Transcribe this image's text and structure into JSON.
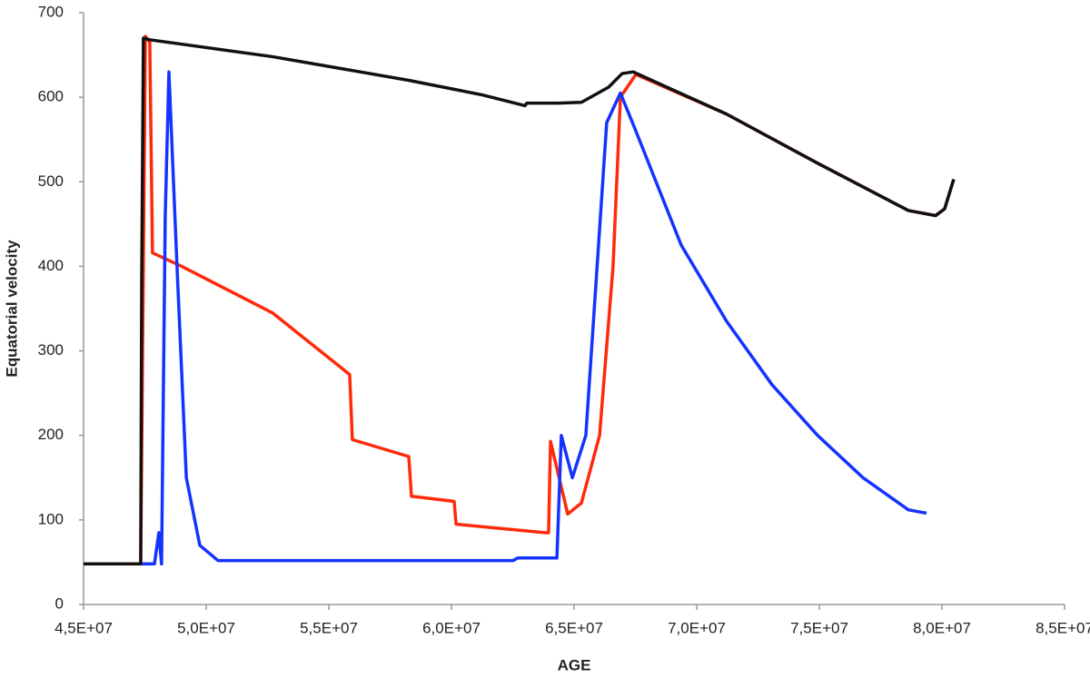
{
  "chart_data": {
    "type": "line",
    "x_label": "AGE",
    "y_label": "Equatorial velocity",
    "xlim": [
      45000000,
      85000000
    ],
    "xticks": [
      {
        "value": 45000000,
        "label": "4,5E+07"
      },
      {
        "value": 50000000,
        "label": "5,0E+07"
      },
      {
        "value": 55000000,
        "label": "5,5E+07"
      },
      {
        "value": 60000000,
        "label": "6,0E+07"
      },
      {
        "value": 65000000,
        "label": "6,5E+07"
      },
      {
        "value": 70000000,
        "label": "7,0E+07"
      },
      {
        "value": 75000000,
        "label": "7,5E+07"
      },
      {
        "value": 80000000,
        "label": "8,0E+07"
      },
      {
        "value": 85000000,
        "label": "8,5E+07"
      }
    ],
    "ylim": [
      0,
      700
    ],
    "yticks": [
      0,
      100,
      200,
      300,
      400,
      500,
      600,
      700
    ],
    "grid": false,
    "series": [
      {
        "color": "#ff2a0a",
        "x": [
          45000000,
          47330000,
          47520000,
          47700000,
          47810000,
          49000000,
          52700000,
          55850000,
          55960000,
          58260000,
          58370000,
          60110000,
          60190000,
          63810000,
          63960000,
          64040000,
          64740000,
          65300000,
          66040000,
          66590000,
          66890000,
          67520000,
          71220000,
          74930000,
          78630000,
          79740000,
          80110000,
          80480000
        ],
        "values": [
          48,
          48,
          672,
          665,
          416,
          400,
          345,
          272,
          195,
          175,
          128,
          122,
          95,
          85,
          85,
          193,
          107,
          120,
          200,
          400,
          600,
          627,
          580,
          522,
          466,
          460,
          468,
          503
        ]
      },
      {
        "color": "#1433ff",
        "x": [
          45000000,
          47890000,
          48070000,
          48180000,
          48330000,
          48480000,
          48810000,
          49190000,
          49740000,
          50480000,
          62520000,
          62700000,
          64300000,
          64480000,
          64930000,
          65480000,
          66330000,
          66890000,
          67520000,
          69370000,
          71220000,
          73070000,
          74930000,
          76780000,
          78630000,
          79370000
        ],
        "values": [
          48,
          48,
          85,
          48,
          460,
          630,
          400,
          150,
          70,
          52,
          52,
          55,
          55,
          200,
          150,
          200,
          570,
          605,
          560,
          425,
          335,
          260,
          200,
          150,
          112,
          108
        ]
      },
      {
        "color": "#111111",
        "x": [
          45000000,
          47330000,
          47370000,
          47440000,
          47700000,
          52700000,
          58260000,
          61220000,
          63000000,
          63070000,
          64370000,
          65300000,
          66410000,
          66960000,
          67410000,
          71220000,
          74930000,
          78630000,
          79740000,
          80110000,
          80480000
        ],
        "values": [
          48,
          48,
          380,
          670,
          668,
          648,
          620,
          603,
          590,
          593,
          593,
          594,
          612,
          628,
          630,
          580,
          522,
          466,
          460,
          468,
          503
        ]
      }
    ]
  }
}
